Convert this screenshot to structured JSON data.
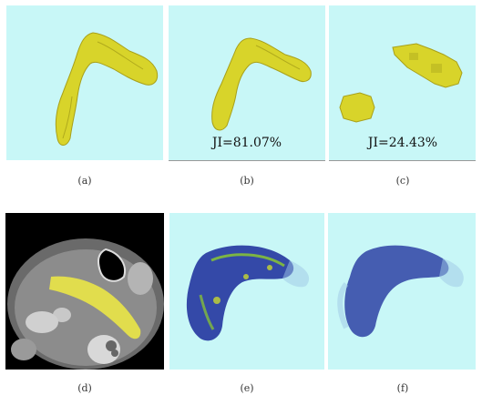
{
  "figure": {
    "colors": {
      "panel_bg": "#c8f7f7",
      "mesh": "#d8d42a",
      "volume_blue": "#1a2a9a",
      "volume_green": "#8fcf2a"
    },
    "panels": [
      {
        "id": "a",
        "caption": "(a)",
        "label": ""
      },
      {
        "id": "b",
        "caption": "(b)",
        "label": "JI=81.07%"
      },
      {
        "id": "c",
        "caption": "(c)",
        "label": "JI=24.43%"
      },
      {
        "id": "d",
        "caption": "(d)",
        "label": ""
      },
      {
        "id": "e",
        "caption": "(e)",
        "label": ""
      },
      {
        "id": "f",
        "caption": "(f)",
        "label": ""
      }
    ]
  }
}
